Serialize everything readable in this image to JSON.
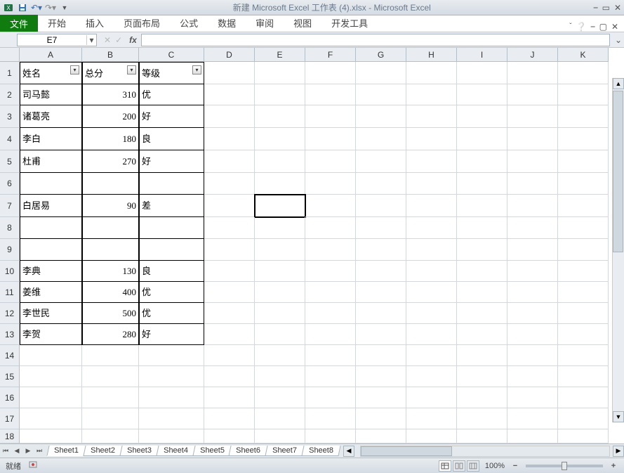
{
  "title": "新建 Microsoft Excel 工作表 (4).xlsx  -  Microsoft Excel",
  "ribbon": {
    "file": "文件",
    "tabs": [
      "开始",
      "插入",
      "页面布局",
      "公式",
      "数据",
      "审阅",
      "视图",
      "开发工具"
    ]
  },
  "namebox": "E7",
  "formula": "",
  "columns": {
    "letters": [
      "A",
      "B",
      "C",
      "D",
      "E",
      "F",
      "G",
      "H",
      "I",
      "J",
      "K"
    ],
    "widths": [
      89,
      81,
      93,
      72,
      72,
      72,
      72,
      72,
      72,
      72,
      72
    ]
  },
  "rows": {
    "count": 18,
    "heights": [
      32,
      30,
      32,
      32,
      32,
      31,
      32,
      31,
      31,
      30,
      30,
      30,
      30,
      30,
      30,
      30,
      30,
      20
    ]
  },
  "table": {
    "headers": [
      "姓名",
      "总分",
      "等级"
    ],
    "data": [
      [
        "司马懿",
        "310",
        "优"
      ],
      [
        "诸葛亮",
        "200",
        "好"
      ],
      [
        "李白",
        "180",
        "良"
      ],
      [
        "杜甫",
        "270",
        "好"
      ],
      [
        "",
        "",
        ""
      ],
      [
        "白居易",
        "90",
        "差"
      ],
      [
        "",
        "",
        ""
      ],
      [
        "",
        "",
        ""
      ],
      [
        "李典",
        "130",
        "良"
      ],
      [
        "姜维",
        "400",
        "优"
      ],
      [
        "李世民",
        "500",
        "优"
      ],
      [
        "李贺",
        "280",
        "好"
      ]
    ]
  },
  "active_cell": {
    "row": 7,
    "col": 5
  },
  "sheets": [
    "Sheet1",
    "Sheet2",
    "Sheet3",
    "Sheet4",
    "Sheet5",
    "Sheet6",
    "Sheet7",
    "Sheet8"
  ],
  "active_sheet": 0,
  "status": "就绪",
  "zoom": "100%",
  "colors": {
    "file_tab": "#107c10",
    "grid_line": "#d4d8dc",
    "header_bg": "#e9edf1"
  }
}
